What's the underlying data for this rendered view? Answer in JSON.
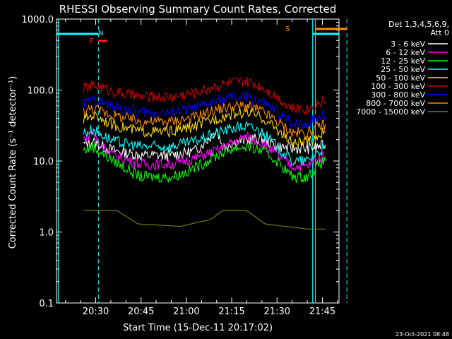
{
  "chart_data": {
    "type": "line",
    "title": "RHESSI Observing Summary Count Rates, Corrected",
    "xlabel": "Start Time (15-Dec-11 20:17:02)",
    "ylabel": "Corrected Count Rate (s⁻¹ detector⁻¹)",
    "ylog": true,
    "ylim": [
      0.1,
      1000
    ],
    "xlim_minutes": [
      20.25,
      21.83
    ],
    "x_ticks": [
      {
        "label": "20:30",
        "min": 30
      },
      {
        "label": "20:45",
        "min": 45
      },
      {
        "label": "21:00",
        "min": 60
      },
      {
        "label": "21:15",
        "min": 75
      },
      {
        "label": "21:30",
        "min": 90
      },
      {
        "label": "21:45",
        "min": 105
      }
    ],
    "y_ticks": [
      {
        "label": "0.1",
        "value": 0.1
      },
      {
        "label": "1.0",
        "value": 1
      },
      {
        "label": "10.0",
        "value": 10
      },
      {
        "label": "100.0",
        "value": 100
      },
      {
        "label": "1000.0",
        "value": 1000
      }
    ],
    "legend_header": [
      "Det 1,3,4,5,6,9,",
      "Att 0"
    ],
    "legend_position": "top-right",
    "series": [
      {
        "name": "3 - 6 keV",
        "color": "#ffffff",
        "points": [
          [
            26,
            17
          ],
          [
            29,
            19
          ],
          [
            31,
            17
          ],
          [
            36,
            14
          ],
          [
            45,
            12
          ],
          [
            55,
            12
          ],
          [
            63,
            14
          ],
          [
            68,
            22
          ],
          [
            70,
            28
          ],
          [
            72,
            16
          ],
          [
            75,
            18
          ],
          [
            80,
            20
          ],
          [
            85,
            21
          ],
          [
            90,
            16
          ],
          [
            95,
            15
          ],
          [
            100,
            15
          ],
          [
            104,
            16
          ],
          [
            106,
            17
          ]
        ]
      },
      {
        "name": "6 - 12 keV",
        "color": "#ff00ff",
        "points": [
          [
            26,
            20
          ],
          [
            29,
            26
          ],
          [
            31,
            18
          ],
          [
            36,
            12
          ],
          [
            45,
            9
          ],
          [
            55,
            9
          ],
          [
            63,
            11
          ],
          [
            70,
            14
          ],
          [
            75,
            18
          ],
          [
            80,
            22
          ],
          [
            85,
            18
          ],
          [
            90,
            12
          ],
          [
            95,
            8.5
          ],
          [
            100,
            8.5
          ],
          [
            104,
            11
          ],
          [
            106,
            12
          ]
        ]
      },
      {
        "name": "12 - 25 keV",
        "color": "#00ff00",
        "points": [
          [
            26,
            14
          ],
          [
            29,
            16
          ],
          [
            32,
            13
          ],
          [
            36,
            10
          ],
          [
            42,
            7
          ],
          [
            45,
            6
          ],
          [
            55,
            6
          ],
          [
            60,
            7
          ],
          [
            65,
            9
          ],
          [
            70,
            12
          ],
          [
            75,
            15
          ],
          [
            80,
            16
          ],
          [
            85,
            14
          ],
          [
            90,
            10
          ],
          [
            95,
            6
          ],
          [
            100,
            6
          ],
          [
            104,
            9
          ],
          [
            106,
            10
          ]
        ]
      },
      {
        "name": "25 - 50 keV",
        "color": "#00ffff",
        "points": [
          [
            26,
            25
          ],
          [
            29,
            28
          ],
          [
            31,
            25
          ],
          [
            36,
            19
          ],
          [
            45,
            16
          ],
          [
            55,
            16
          ],
          [
            63,
            19
          ],
          [
            70,
            25
          ],
          [
            75,
            29
          ],
          [
            80,
            31
          ],
          [
            85,
            26
          ],
          [
            90,
            16
          ],
          [
            95,
            10
          ],
          [
            100,
            10
          ],
          [
            104,
            14
          ],
          [
            106,
            15
          ]
        ]
      },
      {
        "name": "50 - 100 keV",
        "color": "#ffd700",
        "points": [
          [
            26,
            38
          ],
          [
            29,
            45
          ],
          [
            31,
            42
          ],
          [
            36,
            32
          ],
          [
            45,
            26
          ],
          [
            55,
            26
          ],
          [
            63,
            31
          ],
          [
            70,
            40
          ],
          [
            75,
            46
          ],
          [
            80,
            49
          ],
          [
            85,
            41
          ],
          [
            90,
            28
          ],
          [
            95,
            18
          ],
          [
            100,
            18
          ],
          [
            104,
            24
          ],
          [
            106,
            26
          ]
        ]
      },
      {
        "name": "100 - 300 keV",
        "color": "#cc0000",
        "points": [
          [
            26,
            105
          ],
          [
            29,
            115
          ],
          [
            31,
            112
          ],
          [
            36,
            95
          ],
          [
            45,
            80
          ],
          [
            55,
            80
          ],
          [
            63,
            93
          ],
          [
            70,
            115
          ],
          [
            75,
            128
          ],
          [
            80,
            130
          ],
          [
            85,
            112
          ],
          [
            90,
            80
          ],
          [
            95,
            55
          ],
          [
            100,
            54
          ],
          [
            104,
            66
          ],
          [
            106,
            70
          ]
        ]
      },
      {
        "name": "300 - 800 keV",
        "color": "#0000ff",
        "points": [
          [
            26,
            65
          ],
          [
            29,
            72
          ],
          [
            31,
            70
          ],
          [
            36,
            58
          ],
          [
            45,
            48
          ],
          [
            55,
            48
          ],
          [
            63,
            56
          ],
          [
            70,
            70
          ],
          [
            75,
            78
          ],
          [
            80,
            80
          ],
          [
            85,
            68
          ],
          [
            90,
            48
          ],
          [
            95,
            34
          ],
          [
            100,
            34
          ],
          [
            104,
            42
          ],
          [
            106,
            45
          ]
        ]
      },
      {
        "name": "800 - 7000 keV",
        "color": "#ff8c00",
        "points": [
          [
            26,
            50
          ],
          [
            29,
            55
          ],
          [
            31,
            52
          ],
          [
            36,
            44
          ],
          [
            45,
            36
          ],
          [
            55,
            36
          ],
          [
            63,
            42
          ],
          [
            70,
            53
          ],
          [
            75,
            58
          ],
          [
            80,
            60
          ],
          [
            85,
            50
          ],
          [
            90,
            36
          ],
          [
            95,
            25
          ],
          [
            100,
            25
          ],
          [
            104,
            31
          ],
          [
            106,
            33
          ]
        ]
      },
      {
        "name": "7000 - 15000 keV",
        "color": "#808000",
        "points": [
          [
            26,
            2
          ],
          [
            37,
            2
          ],
          [
            44,
            1.3
          ],
          [
            58,
            1.2
          ],
          [
            68,
            1.5
          ],
          [
            72,
            2
          ],
          [
            80,
            2
          ],
          [
            86,
            1.3
          ],
          [
            100,
            1.1
          ],
          [
            106,
            1.1
          ]
        ]
      }
    ],
    "markers": {
      "vertical_cyan_solid_min": [
        17.6,
        101.8
      ],
      "vertical_cyan_dashed_min": [
        30.9,
        113.1
      ],
      "vertical_orange_min": [
        102.7
      ],
      "label_N": "N",
      "label_F": "F",
      "label_S": "S"
    }
  },
  "footer": {
    "timestamp": "23-Oct-2021 08:48"
  }
}
